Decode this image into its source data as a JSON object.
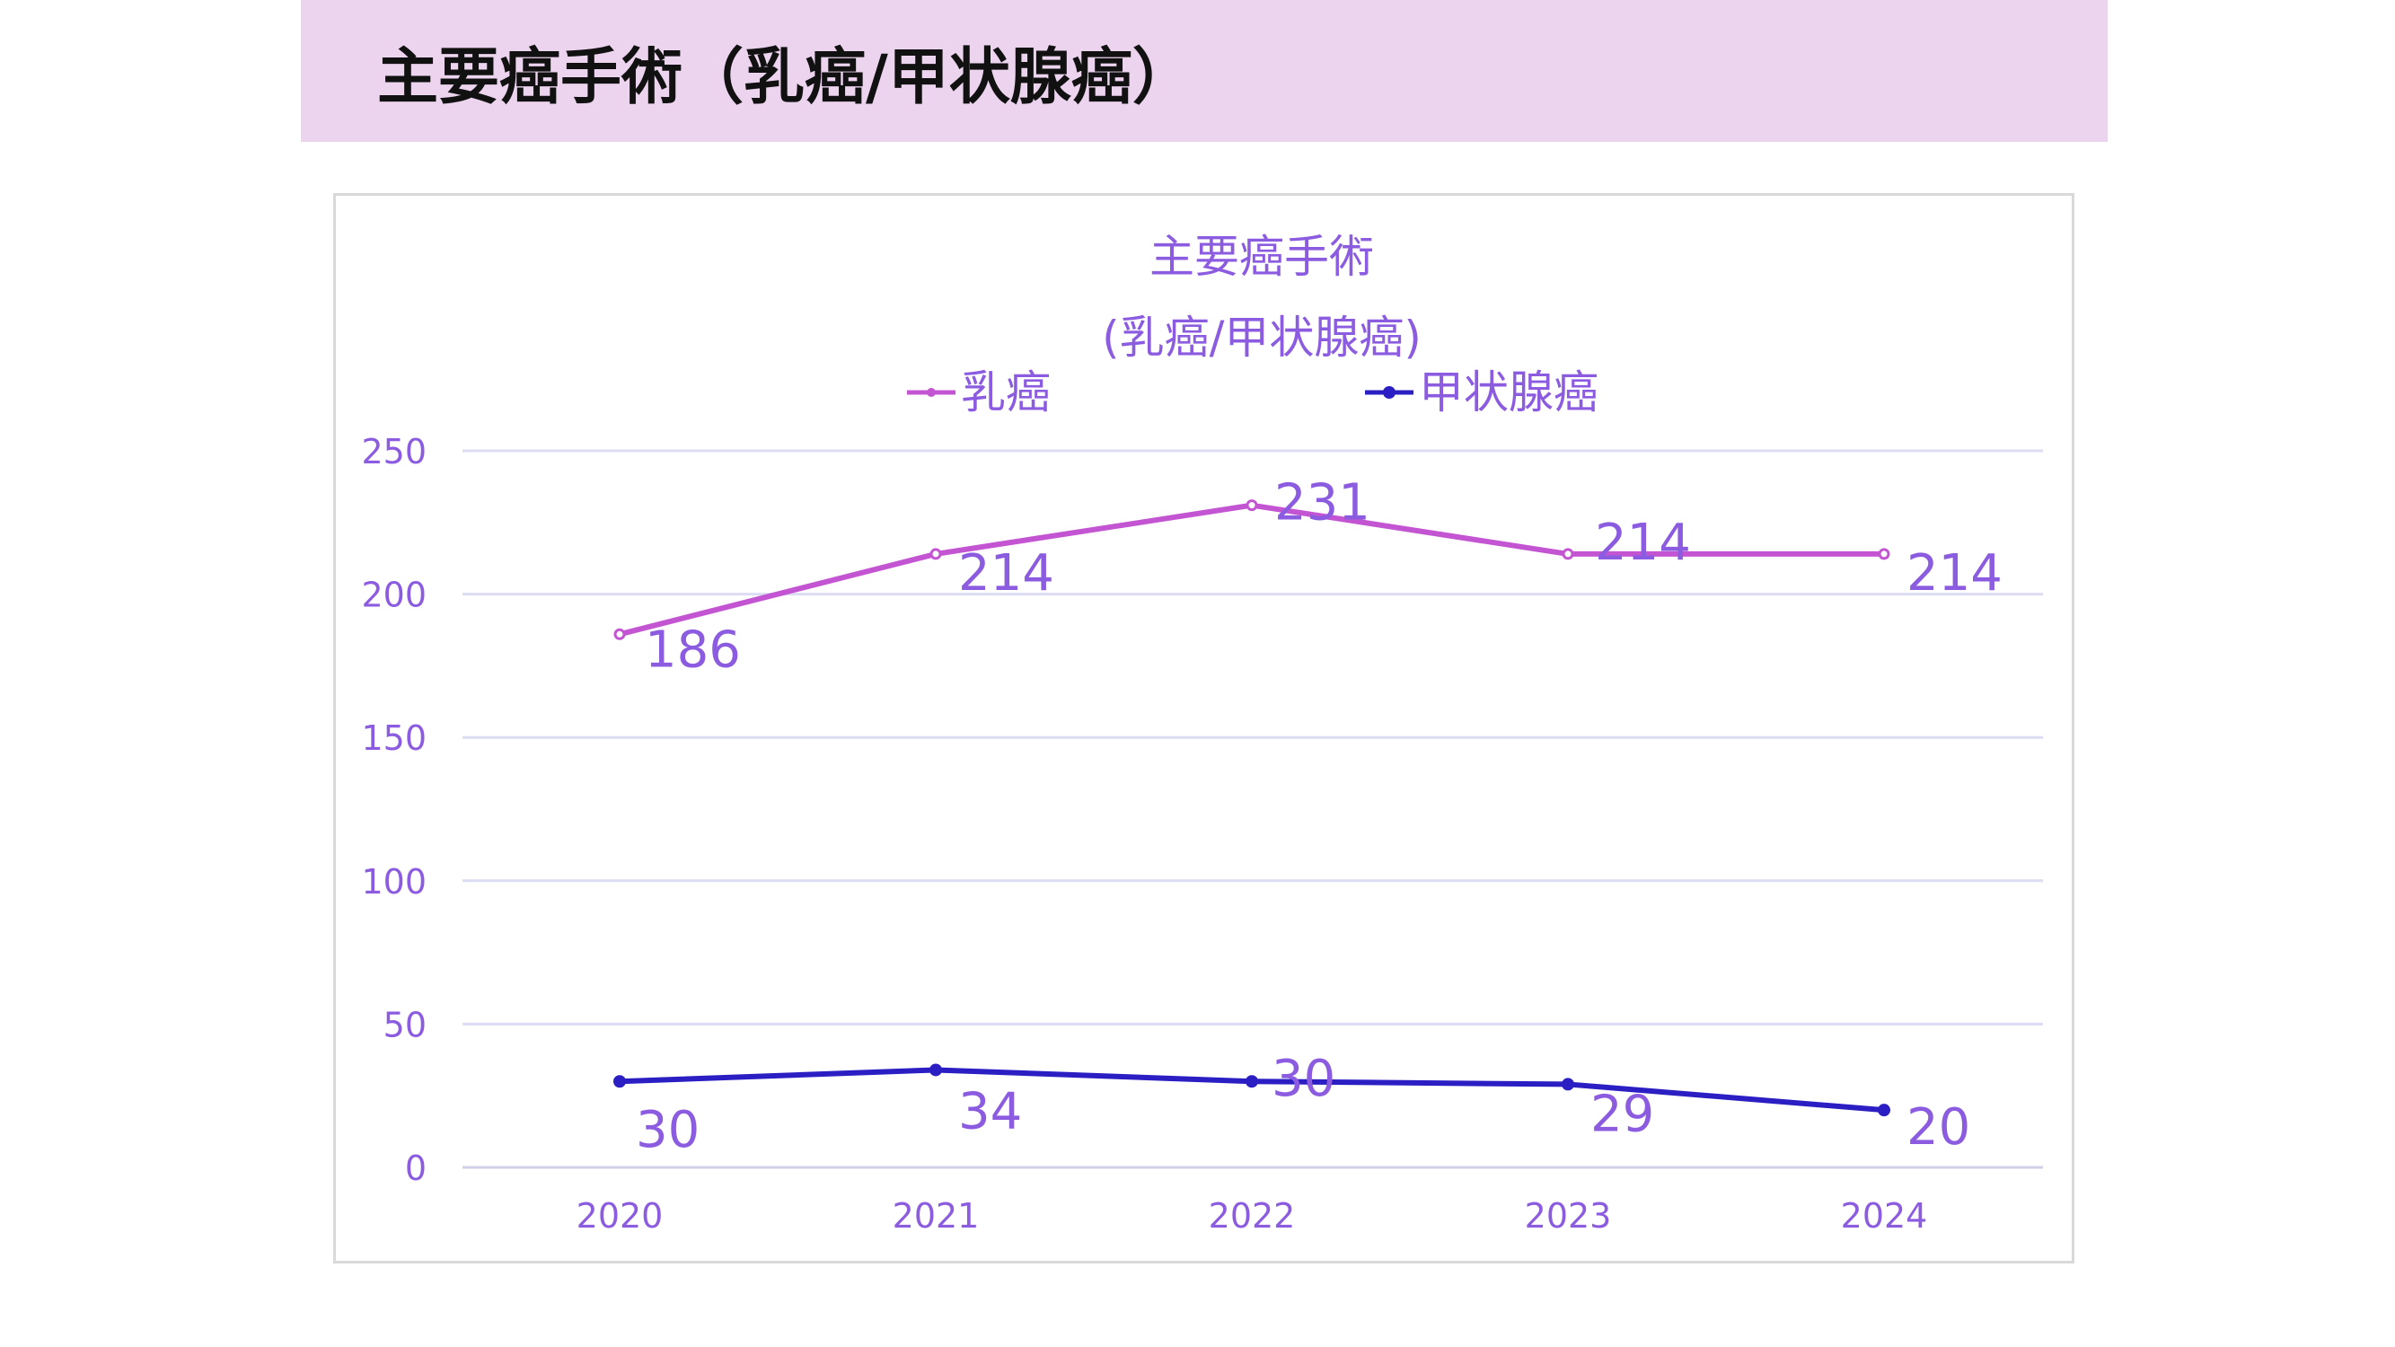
{
  "page_title": "主要癌手術（乳癌/甲状腺癌）",
  "colors": {
    "banner_bg": "#ecd3ee",
    "text_purple": "#8c5ce0",
    "series_breast": "#c455d2",
    "series_thyroid": "#2b1fc4",
    "grid": "#dcdcf2"
  },
  "chart_data": {
    "type": "line",
    "title_line1": "主要癌手術",
    "title_line2": "(乳癌/甲状腺癌)",
    "categories": [
      "2020",
      "2021",
      "2022",
      "2023",
      "2024"
    ],
    "series": [
      {
        "name": "乳癌",
        "values": [
          186,
          214,
          231,
          214,
          214
        ],
        "color": "#c455d2"
      },
      {
        "name": "甲状腺癌",
        "values": [
          30,
          34,
          30,
          29,
          20
        ],
        "color": "#2b1fc4"
      }
    ],
    "y_ticks": [
      "0",
      "50",
      "100",
      "150",
      "200",
      "250"
    ],
    "ylim": [
      0,
      250
    ],
    "grid": true,
    "legend_position": "top"
  }
}
